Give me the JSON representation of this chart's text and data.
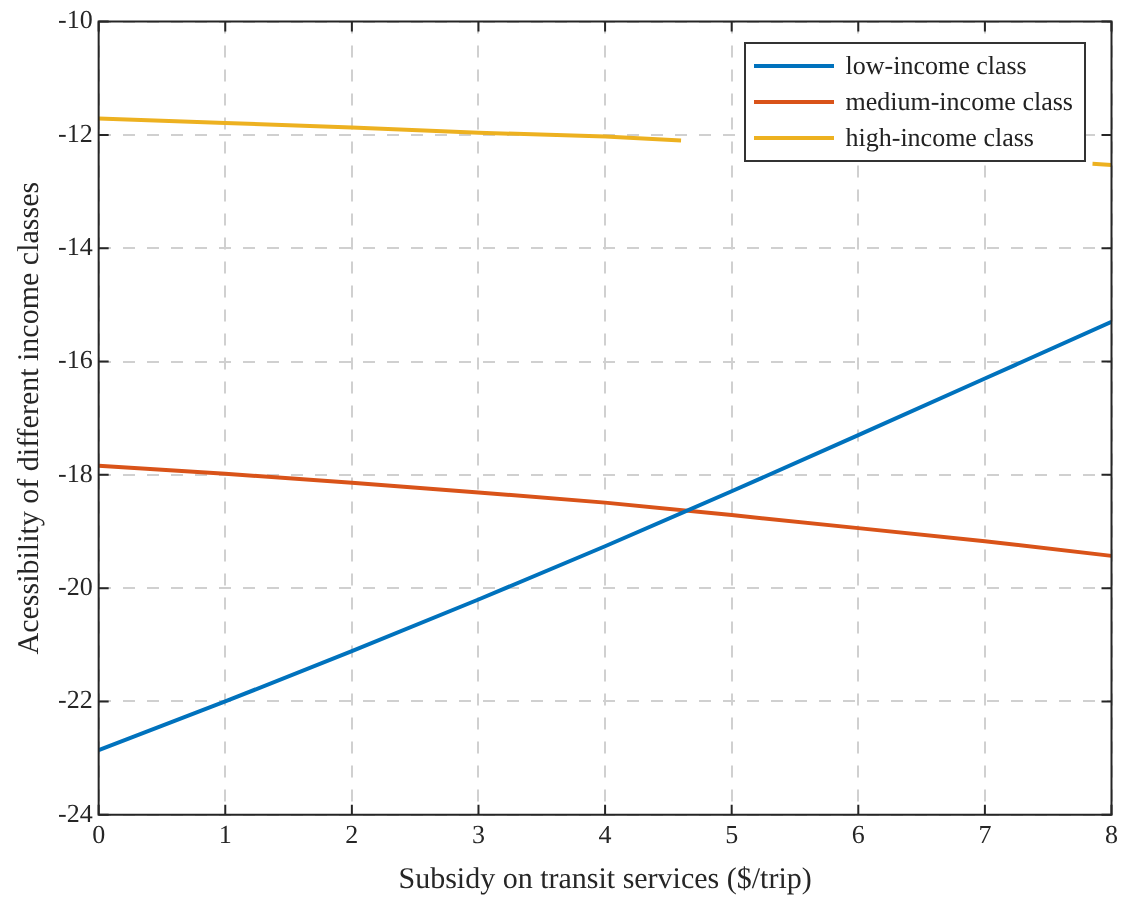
{
  "chart_data": {
    "type": "line",
    "xlabel": "Subsidy on transit services ($/trip)",
    "ylabel": "Acessibility of different income classes",
    "x": [
      0,
      1,
      2,
      3,
      4,
      5,
      6,
      7,
      8
    ],
    "series": [
      {
        "name": "low-income class",
        "color": "#0072bd",
        "values": [
          -22.86,
          -22.0,
          -21.11,
          -20.2,
          -19.26,
          -18.29,
          -17.3,
          -16.3,
          -15.3
        ]
      },
      {
        "name": "medium-income class",
        "color": "#d95319",
        "values": [
          -17.84,
          -17.98,
          -18.14,
          -18.31,
          -18.49,
          -18.71,
          -18.94,
          -19.17,
          -19.43
        ]
      },
      {
        "name": "high-income class",
        "color": "#edb120",
        "x": [
          0,
          1,
          2,
          3,
          4,
          4.6,
          6,
          7.85,
          8
        ],
        "values": [
          -11.71,
          -11.79,
          -11.87,
          -11.96,
          -12.03,
          -12.1,
          null,
          -12.51,
          -12.53
        ]
      }
    ],
    "xlim": [
      0,
      8
    ],
    "xticks": [
      0,
      1,
      2,
      3,
      4,
      5,
      6,
      7,
      8
    ],
    "ylim": [
      -24,
      -10
    ],
    "yticks": [
      -24,
      -22,
      -20,
      -18,
      -16,
      -14,
      -12,
      -10
    ],
    "grid": true,
    "legend": "top right",
    "marker": "none",
    "line_style": "solid"
  }
}
